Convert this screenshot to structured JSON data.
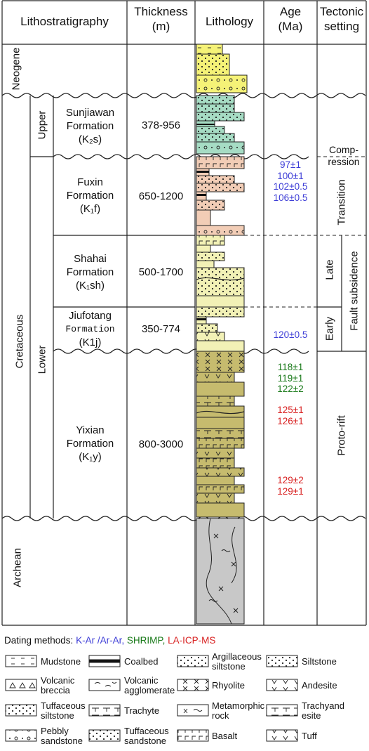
{
  "headers": {
    "lithostratigraphy": "Lithostratigraphy",
    "thickness_1": "Thickness",
    "thickness_2": "(m)",
    "lithology": "Lithology",
    "age_1": "Age",
    "age_2": "(Ma)",
    "tectonic_1": "Tectonic",
    "tectonic_2": "setting"
  },
  "systems": {
    "neogene": "Neogene",
    "cretaceous": "Cretaceous",
    "archean": "Archean",
    "upper": "Upper",
    "lower": "Lower"
  },
  "formations": [
    {
      "line1": "Sunjiawan",
      "line2": "Formation",
      "line3": "(K₂s)",
      "thickness": "378-956"
    },
    {
      "line1": "Fuxin",
      "line2": "Formation",
      "line3": "(K₁f)",
      "thickness": "650-1200"
    },
    {
      "line1": "Shahai",
      "line2": "Formation",
      "line3": "(K₁sh)",
      "thickness": "500-1700"
    },
    {
      "line1": "Jiufotang",
      "line2": "Formation",
      "line3": "(K1j)",
      "thickness": "350-774"
    },
    {
      "line1": "Yixian",
      "line2": "Formation",
      "line3": "(K₁y)",
      "thickness": "800-3000"
    }
  ],
  "ages": {
    "fuxin": [
      "97±1",
      "100±1",
      "102±0.5",
      "106±0.5"
    ],
    "jiufotang": [
      "120±0.5"
    ],
    "yixian_shrimp": [
      "118±1",
      "119±1",
      "122±2"
    ],
    "yixian_la1": [
      "125±1",
      "126±1"
    ],
    "yixian_la2": [
      "129±2",
      "129±1"
    ]
  },
  "tectonic": {
    "compression_1": "Comp-",
    "compression_2": "ression",
    "transition": "Transition",
    "late": "Late",
    "early": "Early",
    "fault_subsidence": "Fault subsidence",
    "proto_rift": "Proto-rift"
  },
  "legend": {
    "title": "Dating methods:",
    "kar": "K-Ar /Ar-Ar,",
    "shrimp": "SHRIMP,",
    "laicp": "LA-ICP-MS",
    "items": {
      "mudstone": "Mudstone",
      "coalbed": "Coalbed",
      "argillaceous_1": "Argillaceous",
      "argillaceous_2": "siltstone",
      "siltstone": "Siltstone",
      "volcanic_breccia_1": "Volcanic",
      "volcanic_breccia_2": "breccia",
      "volcanic_agg_1": "Volcanic",
      "volcanic_agg_2": "agglomerate",
      "rhyolite": "Rhyolite",
      "andesite": "Andesite",
      "tuffaceous_silt_1": "Tuffaceous",
      "tuffaceous_silt_2": "siltstone",
      "trachyte": "Trachyte",
      "metamorphic_1": "Metamorphic",
      "metamorphic_2": "rock",
      "trachyandesite_1": "Trachyand",
      "trachyandesite_2": "esite",
      "pebbly_1": "Pebbly",
      "pebbly_2": "sandstone",
      "tuffaceous_sand_1": "Tuffaceous",
      "tuffaceous_sand_2": "sandstone",
      "basalt": "Basalt",
      "tuff": "Tuff"
    }
  },
  "colors": {
    "neogene": "#f5f277",
    "sunjiawan": "#a6dcc4",
    "fuxin": "#f2cdb6",
    "shahai": "#f2f1b6",
    "yixian": "#c6bb6e",
    "archean": "#c8c8c8",
    "kar_blue": "#3b3bd6",
    "shrimp_green": "#1a7a1a",
    "laicp_red": "#d82020"
  }
}
